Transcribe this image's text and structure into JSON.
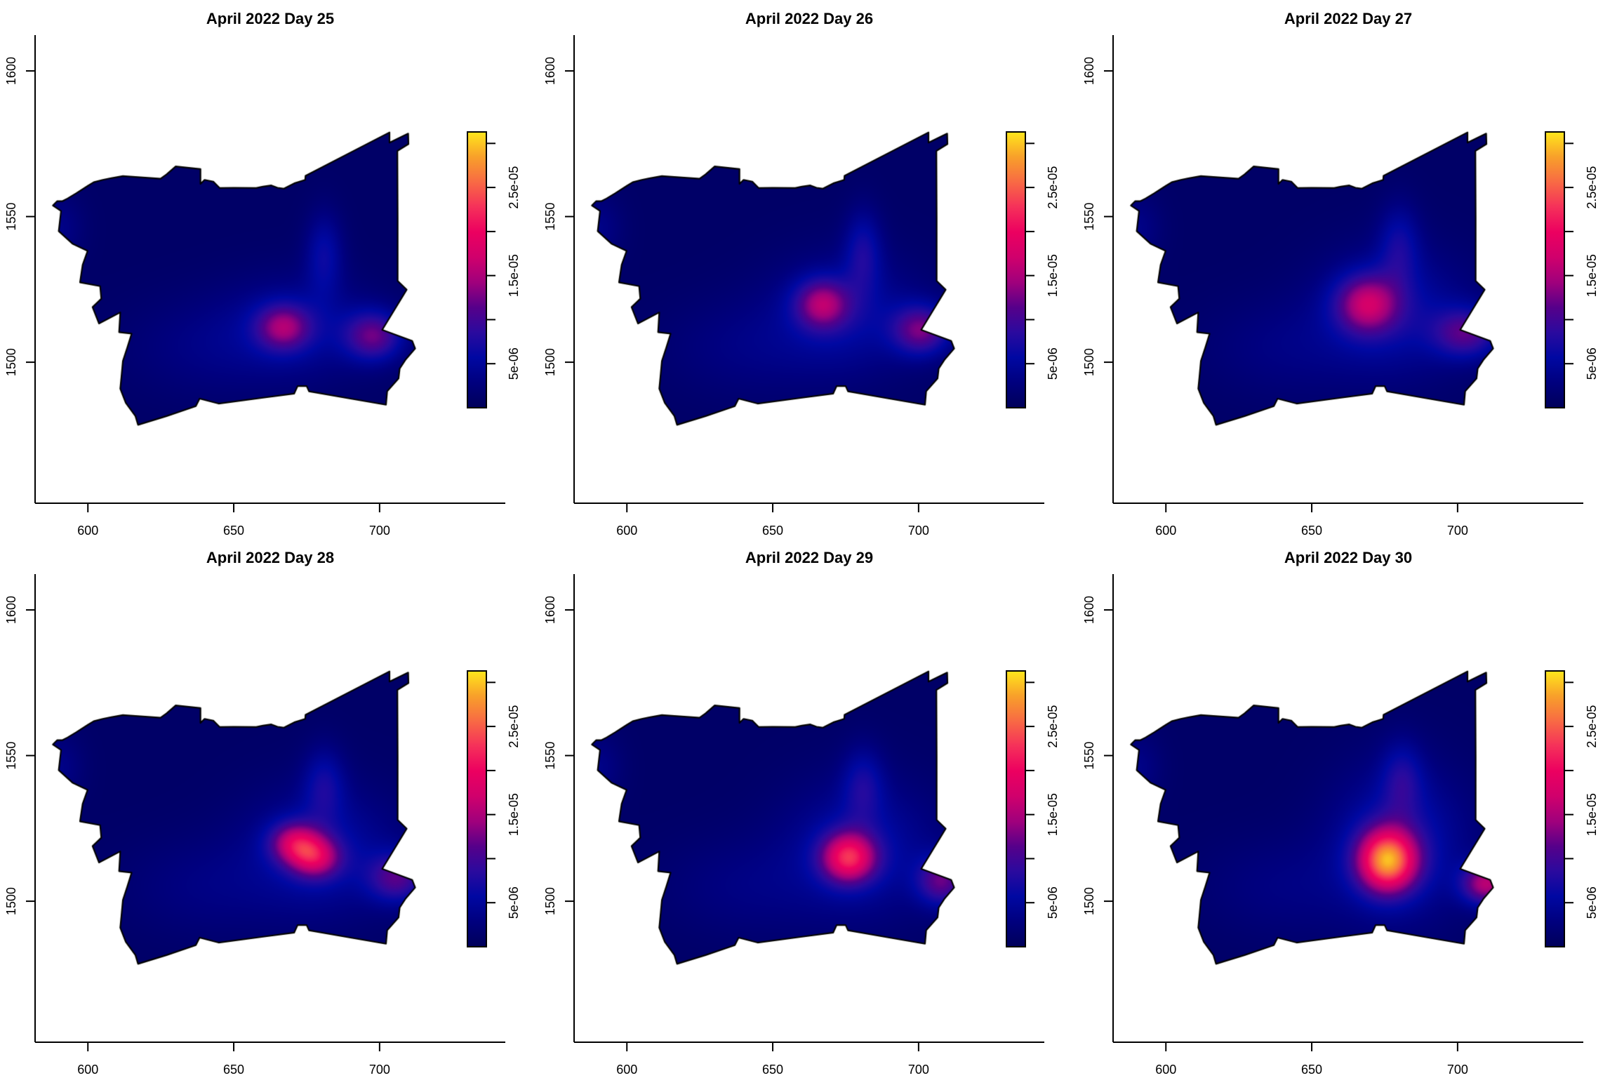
{
  "figure": {
    "layout": "2 rows x 3 columns of kernel-density maps",
    "panel_count": 6
  },
  "colormap": [
    "#00005a",
    "#00007e",
    "#0008a2",
    "#2a0a9e",
    "#56008a",
    "#a0007c",
    "#d0006c",
    "#ec0060",
    "#f5305a",
    "#f86a44",
    "#f8a02a",
    "#ffe61c"
  ],
  "boundary_color": "#000000",
  "map_boundary": [
    [
      588.0,
      1553.8
    ],
    [
      589.5,
      1555.3
    ],
    [
      591.3,
      1555.3
    ],
    [
      593.0,
      1556.2
    ],
    [
      596.0,
      1558.0
    ],
    [
      599.9,
      1560.5
    ],
    [
      602.0,
      1561.8
    ],
    [
      605.1,
      1562.6
    ],
    [
      608.0,
      1563.2
    ],
    [
      612.0,
      1563.9
    ],
    [
      618.0,
      1563.5
    ],
    [
      624.9,
      1563.0
    ],
    [
      627.0,
      1564.5
    ],
    [
      630.1,
      1567.2
    ],
    [
      638.6,
      1566.3
    ],
    [
      638.6,
      1561.2
    ],
    [
      640.0,
      1562.6
    ],
    [
      643.0,
      1562.0
    ],
    [
      645.2,
      1559.8
    ],
    [
      650.0,
      1559.9
    ],
    [
      657.7,
      1559.8
    ],
    [
      660.0,
      1560.3
    ],
    [
      662.9,
      1560.7
    ],
    [
      665.0,
      1559.9
    ],
    [
      667.2,
      1559.6
    ],
    [
      671.0,
      1561.5
    ],
    [
      674.5,
      1562.6
    ],
    [
      674.6,
      1564.0
    ],
    [
      703.4,
      1578.9
    ],
    [
      703.4,
      1575.4
    ],
    [
      709.8,
      1578.5
    ],
    [
      709.9,
      1574.9
    ],
    [
      706.1,
      1572.5
    ],
    [
      706.2,
      1550.0
    ],
    [
      706.2,
      1527.9
    ],
    [
      709.3,
      1524.9
    ],
    [
      700.9,
      1511.1
    ],
    [
      711.2,
      1507.3
    ],
    [
      712.2,
      1504.7
    ],
    [
      709.0,
      1501.0
    ],
    [
      706.9,
      1497.8
    ],
    [
      706.5,
      1494.4
    ],
    [
      702.6,
      1490.0
    ],
    [
      702.2,
      1485.4
    ],
    [
      690.0,
      1487.5
    ],
    [
      675.8,
      1490.0
    ],
    [
      675.0,
      1491.8
    ],
    [
      671.9,
      1491.8
    ],
    [
      670.7,
      1489.2
    ],
    [
      660.0,
      1487.8
    ],
    [
      644.8,
      1485.8
    ],
    [
      638.3,
      1487.5
    ],
    [
      637.0,
      1484.9
    ],
    [
      627.0,
      1481.5
    ],
    [
      617.2,
      1478.5
    ],
    [
      616.3,
      1481.5
    ],
    [
      613.0,
      1486.0
    ],
    [
      611.1,
      1490.9
    ],
    [
      611.5,
      1495.0
    ],
    [
      612.0,
      1500.4
    ],
    [
      613.5,
      1505.0
    ],
    [
      615.0,
      1509.8
    ],
    [
      610.7,
      1510.3
    ],
    [
      611.1,
      1517.1
    ],
    [
      603.8,
      1513.3
    ],
    [
      601.6,
      1518.9
    ],
    [
      604.6,
      1521.8
    ],
    [
      604.2,
      1526.1
    ],
    [
      597.3,
      1527.4
    ],
    [
      598.2,
      1533.4
    ],
    [
      599.9,
      1538.2
    ],
    [
      594.7,
      1540.7
    ],
    [
      590.0,
      1545.0
    ],
    [
      590.8,
      1551.9
    ]
  ],
  "chart_data": [
    {
      "type": "heatmap",
      "title": "April 2022 Day 25",
      "xlabel": "",
      "ylabel": "",
      "xlim": [
        581.9,
        743.1
      ],
      "ylim": [
        1451.6,
        1612.3
      ],
      "x_ticks": [
        600,
        650,
        700
      ],
      "x_tick_labels": [
        "600",
        "650",
        "700"
      ],
      "y_ticks": [
        1500,
        1550,
        1600
      ],
      "y_tick_labels": [
        "1500",
        "1550",
        "1600"
      ],
      "grid": false,
      "legend": "right",
      "colorbar": {
        "range": [
          0,
          3.13e-05
        ],
        "ticks": [
          5e-06,
          1e-05,
          1.5e-05,
          2e-05,
          2.5e-05,
          3e-05
        ],
        "tick_labels": [
          "5e-06",
          "",
          "1.5e-05",
          "",
          "2.5e-05",
          ""
        ]
      },
      "background_value": 1e-06,
      "peak_value": 1.5e-05,
      "hotspots": [
        {
          "x": 672,
          "y": 1512,
          "value": 4e-06,
          "spread_x": 18,
          "spread_y": 12
        },
        {
          "x": 667,
          "y": 1512,
          "value": 1e-05,
          "spread_x": 6.5,
          "spread_y": 5.5
        },
        {
          "x": 698,
          "y": 1509,
          "value": 1e-05,
          "spread_x": 7,
          "spread_y": 6
        },
        {
          "x": 681,
          "y": 1537,
          "value": 5e-06,
          "spread_x": 4.5,
          "spread_y": 10
        },
        {
          "x": 590,
          "y": 1546,
          "value": 2.5e-06,
          "spread_x": 6,
          "spread_y": 8
        },
        {
          "x": 640,
          "y": 1505,
          "value": 2e-06,
          "spread_x": 20,
          "spread_y": 12
        }
      ]
    },
    {
      "type": "heatmap",
      "title": "April 2022 Day 26",
      "xlabel": "",
      "ylabel": "",
      "xlim": [
        581.9,
        743.1
      ],
      "ylim": [
        1451.6,
        1612.3
      ],
      "x_ticks": [
        600,
        650,
        700
      ],
      "x_tick_labels": [
        "600",
        "650",
        "700"
      ],
      "y_ticks": [
        1500,
        1550,
        1600
      ],
      "y_tick_labels": [
        "1500",
        "1550",
        "1600"
      ],
      "grid": false,
      "legend": "right",
      "colorbar": {
        "range": [
          0,
          3.13e-05
        ],
        "ticks": [
          5e-06,
          1e-05,
          1.5e-05,
          2e-05,
          2.5e-05,
          3e-05
        ],
        "tick_labels": [
          "5e-06",
          "",
          "1.5e-05",
          "",
          "2.5e-05",
          ""
        ]
      },
      "background_value": 1e-06,
      "peak_value": 1.6e-05,
      "hotspots": [
        {
          "x": 675,
          "y": 1516,
          "value": 4.5e-06,
          "spread_x": 18,
          "spread_y": 14
        },
        {
          "x": 667,
          "y": 1520,
          "value": 1.1e-05,
          "spread_x": 6.5,
          "spread_y": 6
        },
        {
          "x": 701,
          "y": 1511,
          "value": 1.05e-05,
          "spread_x": 7,
          "spread_y": 6
        },
        {
          "x": 681,
          "y": 1538,
          "value": 5.5e-06,
          "spread_x": 4.5,
          "spread_y": 10
        },
        {
          "x": 590,
          "y": 1546,
          "value": 2.5e-06,
          "spread_x": 6,
          "spread_y": 8
        },
        {
          "x": 640,
          "y": 1505,
          "value": 2e-06,
          "spread_x": 20,
          "spread_y": 12
        }
      ]
    },
    {
      "type": "heatmap",
      "title": "April 2022 Day 27",
      "xlabel": "",
      "ylabel": "",
      "xlim": [
        581.9,
        743.1
      ],
      "ylim": [
        1451.6,
        1612.3
      ],
      "x_ticks": [
        600,
        650,
        700
      ],
      "x_tick_labels": [
        "600",
        "650",
        "700"
      ],
      "y_ticks": [
        1500,
        1550,
        1600
      ],
      "y_tick_labels": [
        "1500",
        "1550",
        "1600"
      ],
      "grid": false,
      "legend": "right",
      "colorbar": {
        "range": [
          0,
          3.13e-05
        ],
        "ticks": [
          5e-06,
          1e-05,
          1.5e-05,
          2e-05,
          2.5e-05,
          3e-05
        ],
        "tick_labels": [
          "5e-06",
          "",
          "1.5e-05",
          "",
          "2.5e-05",
          ""
        ]
      },
      "background_value": 1e-06,
      "peak_value": 1.75e-05,
      "hotspots": [
        {
          "x": 678,
          "y": 1517,
          "value": 5e-06,
          "spread_x": 18,
          "spread_y": 15
        },
        {
          "x": 669,
          "y": 1520,
          "value": 1.2e-05,
          "spread_x": 7.5,
          "spread_y": 7
        },
        {
          "x": 703,
          "y": 1510,
          "value": 9e-06,
          "spread_x": 8,
          "spread_y": 6
        },
        {
          "x": 680,
          "y": 1540,
          "value": 5e-06,
          "spread_x": 5,
          "spread_y": 10
        },
        {
          "x": 590,
          "y": 1546,
          "value": 2.5e-06,
          "spread_x": 6,
          "spread_y": 8
        },
        {
          "x": 640,
          "y": 1505,
          "value": 2e-06,
          "spread_x": 20,
          "spread_y": 12
        }
      ]
    },
    {
      "type": "heatmap",
      "title": "April 2022 Day 28",
      "xlabel": "",
      "ylabel": "",
      "xlim": [
        581.9,
        743.1
      ],
      "ylim": [
        1451.6,
        1612.3
      ],
      "x_ticks": [
        600,
        650,
        700
      ],
      "x_tick_labels": [
        "600",
        "650",
        "700"
      ],
      "y_ticks": [
        1500,
        1550,
        1600
      ],
      "y_tick_labels": [
        "1500",
        "1550",
        "1600"
      ],
      "grid": false,
      "legend": "right",
      "colorbar": {
        "range": [
          0,
          3.13e-05
        ],
        "ticks": [
          5e-06,
          1e-05,
          1.5e-05,
          2e-05,
          2.5e-05,
          3e-05
        ],
        "tick_labels": [
          "5e-06",
          "",
          "1.5e-05",
          "",
          "2.5e-05",
          ""
        ]
      },
      "background_value": 1e-06,
      "peak_value": 1.9e-05,
      "hotspots": [
        {
          "x": 680,
          "y": 1517,
          "value": 5e-06,
          "spread_x": 18,
          "spread_y": 15
        },
        {
          "x": 671,
          "y": 1520,
          "value": 1.2e-05,
          "spread_x": 6,
          "spread_y": 5
        },
        {
          "x": 678,
          "y": 1515,
          "value": 1.2e-05,
          "spread_x": 6,
          "spread_y": 5
        },
        {
          "x": 706,
          "y": 1508,
          "value": 9e-06,
          "spread_x": 7,
          "spread_y": 6
        },
        {
          "x": 681,
          "y": 1540,
          "value": 5e-06,
          "spread_x": 5,
          "spread_y": 9
        },
        {
          "x": 590,
          "y": 1546,
          "value": 2.5e-06,
          "spread_x": 6,
          "spread_y": 8
        },
        {
          "x": 640,
          "y": 1505,
          "value": 2e-06,
          "spread_x": 20,
          "spread_y": 12
        }
      ]
    },
    {
      "type": "heatmap",
      "title": "April 2022 Day 29",
      "xlabel": "",
      "ylabel": "",
      "xlim": [
        581.9,
        743.1
      ],
      "ylim": [
        1451.6,
        1612.3
      ],
      "x_ticks": [
        600,
        650,
        700
      ],
      "x_tick_labels": [
        "600",
        "650",
        "700"
      ],
      "y_ticks": [
        1500,
        1550,
        1600
      ],
      "y_tick_labels": [
        "1500",
        "1550",
        "1600"
      ],
      "grid": false,
      "legend": "right",
      "colorbar": {
        "range": [
          0,
          3.13e-05
        ],
        "ticks": [
          5e-06,
          1e-05,
          1.5e-05,
          2e-05,
          2.5e-05,
          3e-05
        ],
        "tick_labels": [
          "5e-06",
          "",
          "1.5e-05",
          "",
          "2.5e-05",
          ""
        ]
      },
      "background_value": 1e-06,
      "peak_value": 2.4e-05,
      "hotspots": [
        {
          "x": 680,
          "y": 1518,
          "value": 5e-06,
          "spread_x": 18,
          "spread_y": 16
        },
        {
          "x": 676,
          "y": 1515,
          "value": 1.7e-05,
          "spread_x": 6.5,
          "spread_y": 6
        },
        {
          "x": 708,
          "y": 1507,
          "value": 1e-05,
          "spread_x": 6,
          "spread_y": 6
        },
        {
          "x": 681,
          "y": 1540,
          "value": 5e-06,
          "spread_x": 5,
          "spread_y": 9
        },
        {
          "x": 590,
          "y": 1546,
          "value": 2.5e-06,
          "spread_x": 6,
          "spread_y": 8
        },
        {
          "x": 640,
          "y": 1505,
          "value": 2e-06,
          "spread_x": 20,
          "spread_y": 12
        }
      ]
    },
    {
      "type": "heatmap",
      "title": "April 2022 Day 30",
      "xlabel": "",
      "ylabel": "",
      "xlim": [
        581.9,
        743.1
      ],
      "ylim": [
        1451.6,
        1612.3
      ],
      "x_ticks": [
        600,
        650,
        700
      ],
      "x_tick_labels": [
        "600",
        "650",
        "700"
      ],
      "y_ticks": [
        1500,
        1550,
        1600
      ],
      "y_tick_labels": [
        "1500",
        "1550",
        "1600"
      ],
      "grid": false,
      "legend": "right",
      "colorbar": {
        "range": [
          0,
          3.13e-05
        ],
        "ticks": [
          5e-06,
          1e-05,
          1.5e-05,
          2e-05,
          2.5e-05,
          3e-05
        ],
        "tick_labels": [
          "5e-06",
          "",
          "1.5e-05",
          "",
          "2.5e-05",
          ""
        ]
      },
      "background_value": 1e-06,
      "peak_value": 3e-05,
      "hotspots": [
        {
          "x": 680,
          "y": 1520,
          "value": 6e-06,
          "spread_x": 16,
          "spread_y": 18
        },
        {
          "x": 676,
          "y": 1514,
          "value": 2.3e-05,
          "spread_x": 7,
          "spread_y": 7.5
        },
        {
          "x": 710,
          "y": 1506,
          "value": 1.4e-05,
          "spread_x": 6,
          "spread_y": 5
        },
        {
          "x": 681,
          "y": 1542,
          "value": 5e-06,
          "spread_x": 5,
          "spread_y": 9
        },
        {
          "x": 590,
          "y": 1546,
          "value": 2.5e-06,
          "spread_x": 6,
          "spread_y": 8
        },
        {
          "x": 640,
          "y": 1505,
          "value": 2e-06,
          "spread_x": 20,
          "spread_y": 12
        }
      ]
    }
  ]
}
